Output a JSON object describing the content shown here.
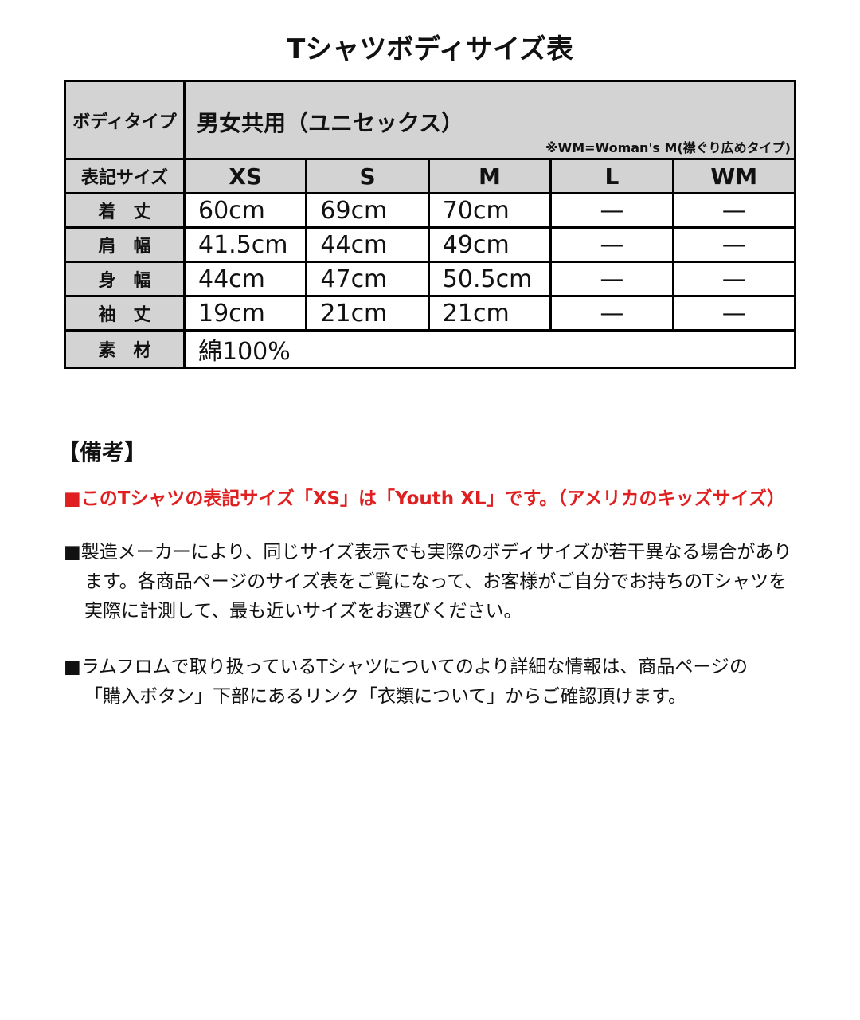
{
  "title": "Tシャツボディサイズ表",
  "table": {
    "body_type_label": "ボディタイプ",
    "body_type_value": "男女共用（ユニセックス）",
    "body_type_note": "※WM=Woman's M(襟ぐり広めタイプ)",
    "size_label": "表記サイズ",
    "sizes": [
      "XS",
      "S",
      "M",
      "L",
      "WM"
    ],
    "rows": [
      {
        "label": "着　丈",
        "values": [
          "60cm",
          "69cm",
          "70cm",
          "—",
          "—"
        ]
      },
      {
        "label": "肩　幅",
        "values": [
          "41.5cm",
          "44cm",
          "49cm",
          "—",
          "—"
        ]
      },
      {
        "label": "身　幅",
        "values": [
          "44cm",
          "47cm",
          "50.5cm",
          "—",
          "—"
        ]
      },
      {
        "label": "袖　丈",
        "values": [
          "19cm",
          "21cm",
          "21cm",
          "—",
          "—"
        ]
      }
    ],
    "material_label": "素　材",
    "material_value": "綿100%"
  },
  "notes": {
    "heading": "【備考】",
    "red_note": "■このTシャツの表記サイズ「XS」は「Youth XL」です。（アメリカのキッズサイズ）",
    "note1": [
      "■製造メーカーにより、同じサイズ表示でも実際のボディサイズが若干異なる場合があり",
      "ます。各商品ページのサイズ表をご覧になって、お客様がご自分でお持ちのTシャツを",
      "実際に計測して、最も近いサイズをお選びください。"
    ],
    "note2": [
      "■ラムフロムで取り扱っているTシャツについてのより詳細な情報は、商品ページの",
      "「購入ボタン」下部にあるリンク「衣類について」からご確認頂けます。"
    ],
    "red_color": "#e02020"
  }
}
